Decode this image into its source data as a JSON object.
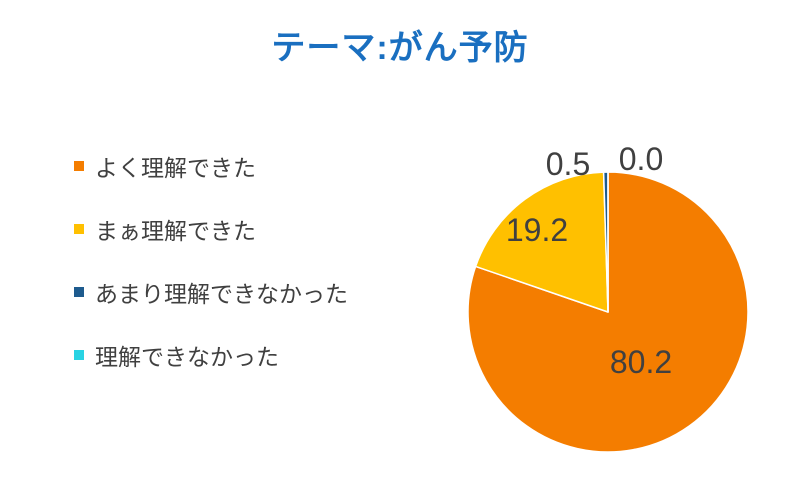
{
  "colors": {
    "title": "#1a6fc0",
    "text": "#404040",
    "slice_border": "#ffffff"
  },
  "chart_data": {
    "type": "pie",
    "title": "テーマ:がん予防",
    "categories": [
      "よく理解できた",
      "まぁ理解できた",
      "あまり理解できなかった",
      "理解できなかった"
    ],
    "values": [
      80.2,
      19.2,
      0.5,
      0.0
    ],
    "data_labels": [
      "80.2",
      "19.2",
      "0.5",
      "0.0"
    ],
    "colors": [
      "#f47d00",
      "#ffc000",
      "#1e5b8e",
      "#29d3e3"
    ],
    "legend_position": "left"
  }
}
